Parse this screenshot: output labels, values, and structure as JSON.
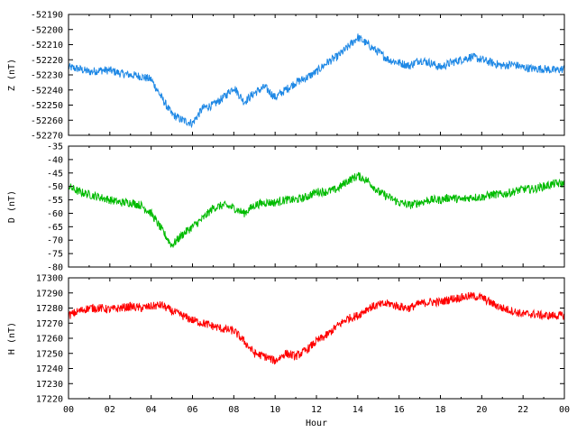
{
  "chart_data": [
    {
      "type": "line",
      "panel": "Z",
      "ylabel": "Z (nT)",
      "ylim": [
        -52270,
        -52190
      ],
      "yticks": [
        "-52190",
        "-52200",
        "-52210",
        "-52220",
        "-52230",
        "-52240",
        "-52250",
        "-52260",
        "-52270"
      ],
      "color": "#1e88e5",
      "x": [
        0,
        0.5,
        1,
        1.5,
        2,
        2.5,
        3,
        3.5,
        4,
        4.5,
        5,
        5.5,
        6,
        6.5,
        7,
        7.5,
        8,
        8.5,
        9,
        9.5,
        10,
        10.5,
        11,
        11.5,
        12,
        12.5,
        13,
        13.5,
        14,
        14.5,
        15,
        15.5,
        16,
        16.5,
        17,
        17.5,
        18,
        18.5,
        19,
        19.5,
        20,
        20.5,
        21,
        21.5,
        22,
        22.5,
        23,
        23.5,
        24
      ],
      "y": [
        -52225,
        -52226,
        -52228,
        -52227,
        -52227,
        -52229,
        -52230,
        -52231,
        -52233,
        -52245,
        -52256,
        -52260,
        -52262,
        -52252,
        -52250,
        -52245,
        -52238,
        -52248,
        -52242,
        -52238,
        -52245,
        -52240,
        -52235,
        -52232,
        -52228,
        -52222,
        -52218,
        -52212,
        -52205,
        -52210,
        -52215,
        -52220,
        -52222,
        -52224,
        -52220,
        -52222,
        -52225,
        -52222,
        -52220,
        -52218,
        -52220,
        -52222,
        -52224,
        -52223,
        -52225,
        -52226,
        -52226,
        -52227,
        -52226
      ]
    },
    {
      "type": "line",
      "panel": "D",
      "ylabel": "D (nT)",
      "ylim": [
        -80,
        -35
      ],
      "yticks": [
        "-35",
        "-40",
        "-45",
        "-50",
        "-55",
        "-60",
        "-65",
        "-70",
        "-75",
        "-80"
      ],
      "color": "#00bb00",
      "x": [
        0,
        0.5,
        1,
        1.5,
        2,
        2.5,
        3,
        3.5,
        4,
        4.5,
        5,
        5.5,
        6,
        6.5,
        7,
        7.5,
        8,
        8.5,
        9,
        9.5,
        10,
        10.5,
        11,
        11.5,
        12,
        12.5,
        13,
        13.5,
        14,
        14.5,
        15,
        15.5,
        16,
        16.5,
        17,
        17.5,
        18,
        18.5,
        19,
        19.5,
        20,
        20.5,
        21,
        21.5,
        22,
        22.5,
        23,
        23.5,
        24
      ],
      "y": [
        -50,
        -52,
        -53,
        -54,
        -55,
        -56,
        -56,
        -57,
        -60,
        -66,
        -72,
        -68,
        -65,
        -62,
        -58,
        -57,
        -58,
        -60,
        -57,
        -56,
        -56,
        -55,
        -55,
        -54,
        -52,
        -52,
        -51,
        -48,
        -46,
        -48,
        -52,
        -54,
        -56,
        -57,
        -56,
        -55,
        -55,
        -54,
        -55,
        -54,
        -54,
        -53,
        -53,
        -52,
        -51,
        -51,
        -50,
        -49,
        -49
      ]
    },
    {
      "type": "line",
      "panel": "H",
      "ylabel": "H (nT)",
      "ylim": [
        17220,
        17300
      ],
      "yticks": [
        "17300",
        "17290",
        "17280",
        "17270",
        "17260",
        "17250",
        "17240",
        "17230",
        "17220"
      ],
      "color": "#ff0000",
      "x": [
        0,
        0.5,
        1,
        1.5,
        2,
        2.5,
        3,
        3.5,
        4,
        4.5,
        5,
        5.5,
        6,
        6.5,
        7,
        7.5,
        8,
        8.5,
        9,
        9.5,
        10,
        10.5,
        11,
        11.5,
        12,
        12.5,
        13,
        13.5,
        14,
        14.5,
        15,
        15.5,
        16,
        16.5,
        17,
        17.5,
        18,
        18.5,
        19,
        19.5,
        20,
        20.5,
        21,
        21.5,
        22,
        22.5,
        23,
        23.5,
        24
      ],
      "y": [
        17275,
        17278,
        17280,
        17280,
        17279,
        17280,
        17281,
        17280,
        17281,
        17282,
        17278,
        17275,
        17272,
        17270,
        17268,
        17266,
        17265,
        17258,
        17250,
        17248,
        17245,
        17250,
        17248,
        17252,
        17258,
        17262,
        17268,
        17273,
        17275,
        17280,
        17282,
        17283,
        17281,
        17280,
        17283,
        17284,
        17284,
        17286,
        17287,
        17288,
        17287,
        17283,
        17280,
        17278,
        17276,
        17276,
        17275,
        17275,
        17275
      ]
    }
  ],
  "xaxis": {
    "label": "Hour",
    "range": [
      0,
      24
    ],
    "ticks": [
      "00",
      "02",
      "04",
      "06",
      "08",
      "10",
      "12",
      "14",
      "16",
      "18",
      "20",
      "22",
      "00"
    ]
  }
}
